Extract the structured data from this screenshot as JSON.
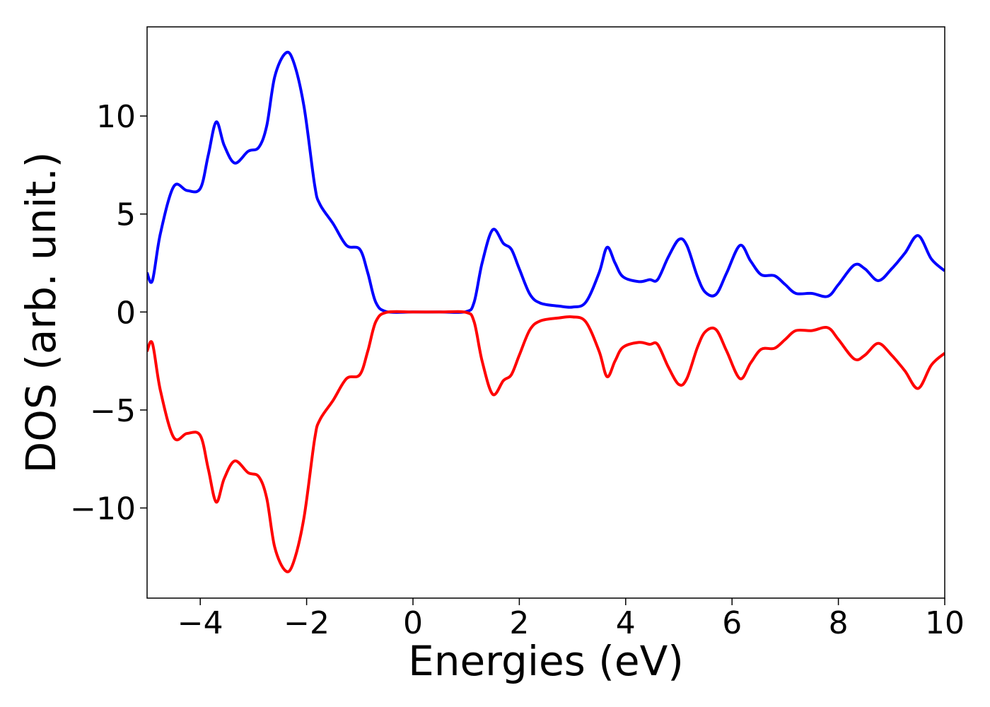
{
  "chart_data": {
    "type": "line",
    "xlabel": "Energies (eV)",
    "ylabel": "DOS (arb. unit.)",
    "x": [
      -5,
      -4.9,
      -4.75,
      -4.5,
      -4.25,
      -4.0,
      -3.85,
      -3.7,
      -3.55,
      -3.35,
      -3.1,
      -2.9,
      -2.75,
      -2.6,
      -2.4,
      -2.25,
      -2.05,
      -1.85,
      -1.75,
      -1.5,
      -1.25,
      -1.0,
      -0.85,
      -0.7,
      -0.5,
      0,
      0.5,
      1.0,
      1.15,
      1.3,
      1.5,
      1.7,
      1.85,
      2.0,
      2.2,
      2.4,
      2.75,
      3.0,
      3.25,
      3.5,
      3.65,
      3.8,
      3.95,
      4.25,
      4.45,
      4.6,
      4.8,
      5.0,
      5.15,
      5.35,
      5.5,
      5.7,
      5.9,
      6.15,
      6.35,
      6.55,
      6.8,
      7.0,
      7.2,
      7.5,
      7.8,
      8.0,
      8.3,
      8.5,
      8.75,
      9.0,
      9.25,
      9.5,
      9.75,
      10
    ],
    "series": [
      {
        "color": "#0000ff",
        "values": [
          2.0,
          1.6,
          4.0,
          6.4,
          6.2,
          6.3,
          8.0,
          9.7,
          8.5,
          7.6,
          8.2,
          8.4,
          9.5,
          12.0,
          13.2,
          12.8,
          10.5,
          6.5,
          5.5,
          4.5,
          3.4,
          3.2,
          2.0,
          0.5,
          0.02,
          0,
          0,
          0.02,
          0.5,
          2.5,
          4.2,
          3.5,
          3.2,
          2.2,
          0.9,
          0.45,
          0.3,
          0.25,
          0.5,
          2.0,
          3.3,
          2.5,
          1.8,
          1.55,
          1.65,
          1.65,
          2.8,
          3.7,
          3.4,
          1.8,
          1.0,
          0.9,
          2.0,
          3.4,
          2.6,
          1.9,
          1.85,
          1.4,
          0.95,
          0.95,
          0.8,
          1.4,
          2.4,
          2.2,
          1.6,
          2.2,
          3.0,
          3.9,
          2.7,
          2.1
        ]
      },
      {
        "color": "#ff0000",
        "values": [
          -2.0,
          -1.6,
          -4.0,
          -6.4,
          -6.2,
          -6.3,
          -8.0,
          -9.7,
          -8.5,
          -7.6,
          -8.2,
          -8.4,
          -9.5,
          -12.0,
          -13.2,
          -12.8,
          -10.5,
          -6.5,
          -5.5,
          -4.5,
          -3.4,
          -3.2,
          -2.0,
          -0.5,
          -0.02,
          0,
          0,
          -0.02,
          -0.5,
          -2.5,
          -4.2,
          -3.5,
          -3.2,
          -2.2,
          -0.9,
          -0.45,
          -0.3,
          -0.25,
          -0.5,
          -2.0,
          -3.3,
          -2.5,
          -1.8,
          -1.55,
          -1.65,
          -1.65,
          -2.8,
          -3.7,
          -3.4,
          -1.8,
          -1.0,
          -0.9,
          -2.0,
          -3.4,
          -2.6,
          -1.9,
          -1.85,
          -1.4,
          -0.95,
          -0.95,
          -0.8,
          -1.4,
          -2.4,
          -2.2,
          -1.6,
          -2.2,
          -3.0,
          -3.9,
          -2.7,
          -2.1
        ]
      }
    ],
    "xlim": [
      -5,
      10
    ],
    "xticks": [
      {
        "value": -4,
        "label": "−4"
      },
      {
        "value": -2,
        "label": "−2"
      },
      0,
      2,
      4,
      6,
      8,
      10
    ],
    "ylim": [
      -14.6,
      14.55
    ],
    "yticks": [
      {
        "value": -10,
        "label": "−10"
      },
      {
        "value": -5,
        "label": "−5"
      },
      0,
      5,
      10
    ],
    "grid": false
  }
}
